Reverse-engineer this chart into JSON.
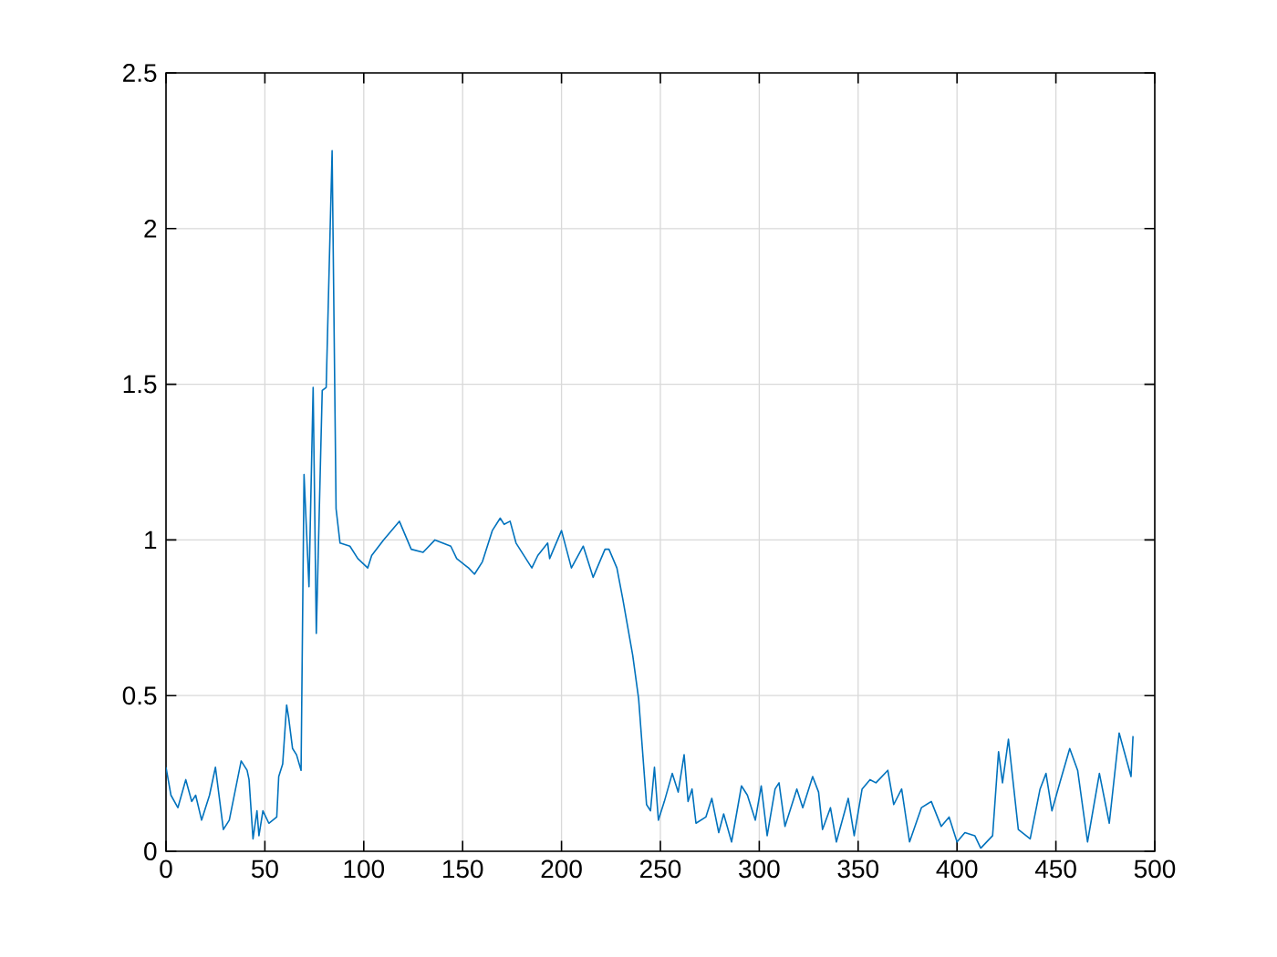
{
  "chart_data": {
    "type": "line",
    "x": [
      0,
      2.5,
      6,
      10,
      13,
      15,
      18,
      22,
      25,
      29,
      32,
      38,
      41,
      42,
      44,
      46,
      47,
      49,
      52,
      56,
      57,
      59,
      61,
      62,
      64,
      66,
      68.3,
      69.8,
      72.3,
      74.4,
      76,
      79,
      81,
      84,
      86,
      88,
      93,
      97,
      102,
      104,
      110,
      114,
      118,
      124,
      130,
      136,
      144,
      147,
      153,
      156,
      160,
      165,
      169,
      171,
      174,
      177,
      185,
      188,
      193,
      194,
      200,
      205,
      211,
      216,
      222,
      224,
      228,
      231,
      236,
      239,
      243,
      245,
      247,
      249,
      252,
      256,
      259,
      262,
      264,
      266,
      268,
      273,
      276,
      279.5,
      282,
      286,
      291,
      294,
      298,
      301,
      304,
      308,
      310,
      313,
      319,
      322,
      327,
      330,
      332,
      336,
      339,
      345,
      348,
      352,
      356,
      359,
      365,
      368,
      372,
      376,
      382,
      387,
      392,
      396,
      400,
      404,
      409,
      412,
      418,
      421,
      423,
      426,
      431,
      437,
      442,
      445,
      448,
      452,
      457,
      461,
      466,
      472,
      477,
      482,
      488,
      489
    ],
    "series": [
      {
        "color": "#0072bd",
        "values": [
          0.27,
          0.18,
          0.14,
          0.23,
          0.16,
          0.18,
          0.1,
          0.18,
          0.27,
          0.07,
          0.1,
          0.29,
          0.26,
          0.23,
          0.04,
          0.13,
          0.05,
          0.13,
          0.09,
          0.11,
          0.24,
          0.28,
          0.47,
          0.43,
          0.33,
          0.31,
          0.26,
          1.21,
          0.85,
          1.49,
          0.7,
          1.48,
          1.49,
          2.25,
          1.1,
          0.99,
          0.98,
          0.94,
          0.91,
          0.95,
          1.0,
          1.03,
          1.06,
          0.97,
          0.96,
          1.0,
          0.98,
          0.94,
          0.91,
          0.89,
          0.93,
          1.03,
          1.07,
          1.05,
          1.06,
          0.99,
          0.91,
          0.95,
          0.99,
          0.94,
          1.03,
          0.91,
          0.98,
          0.88,
          0.97,
          0.97,
          0.91,
          0.81,
          0.63,
          0.49,
          0.15,
          0.13,
          0.27,
          0.1,
          0.16,
          0.25,
          0.19,
          0.31,
          0.16,
          0.2,
          0.09,
          0.11,
          0.17,
          0.06,
          0.12,
          0.03,
          0.21,
          0.18,
          0.1,
          0.21,
          0.05,
          0.2,
          0.22,
          0.08,
          0.2,
          0.14,
          0.24,
          0.19,
          0.07,
          0.14,
          0.03,
          0.17,
          0.05,
          0.2,
          0.23,
          0.22,
          0.26,
          0.15,
          0.2,
          0.03,
          0.14,
          0.16,
          0.08,
          0.11,
          0.03,
          0.06,
          0.05,
          0.01,
          0.05,
          0.32,
          0.22,
          0.36,
          0.07,
          0.04,
          0.2,
          0.25,
          0.13,
          0.22,
          0.33,
          0.26,
          0.03,
          0.25,
          0.09,
          0.38,
          0.24,
          0.37
        ]
      }
    ],
    "xlim": [
      0,
      500
    ],
    "ylim": [
      0,
      2.5
    ],
    "xticks": [
      0,
      50,
      100,
      150,
      200,
      250,
      300,
      350,
      400,
      450,
      500
    ],
    "yticks": [
      0,
      0.5,
      1,
      1.5,
      2,
      2.5
    ],
    "grid": true
  }
}
